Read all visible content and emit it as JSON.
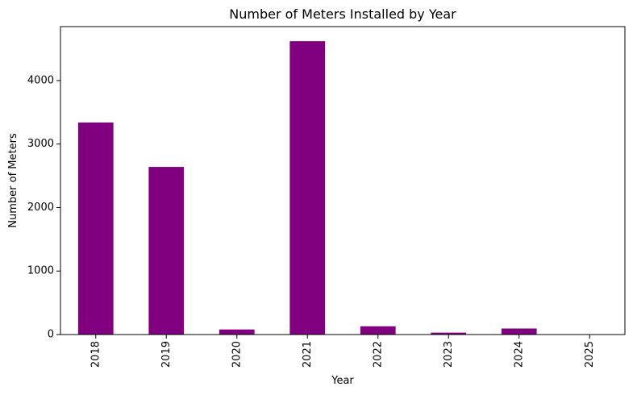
{
  "chart_data": {
    "type": "bar",
    "title": "Number of Meters Installed by Year",
    "xlabel": "Year",
    "ylabel": "Number of Meters",
    "categories": [
      "2018",
      "2019",
      "2020",
      "2021",
      "2022",
      "2023",
      "2024",
      "2025"
    ],
    "values": [
      3340,
      2640,
      80,
      4620,
      130,
      30,
      95,
      0
    ],
    "ylim": [
      0,
      4850
    ],
    "yticks": [
      0,
      1000,
      2000,
      3000,
      4000
    ],
    "bar_color": "#800080",
    "grid": false,
    "legend": "none"
  }
}
